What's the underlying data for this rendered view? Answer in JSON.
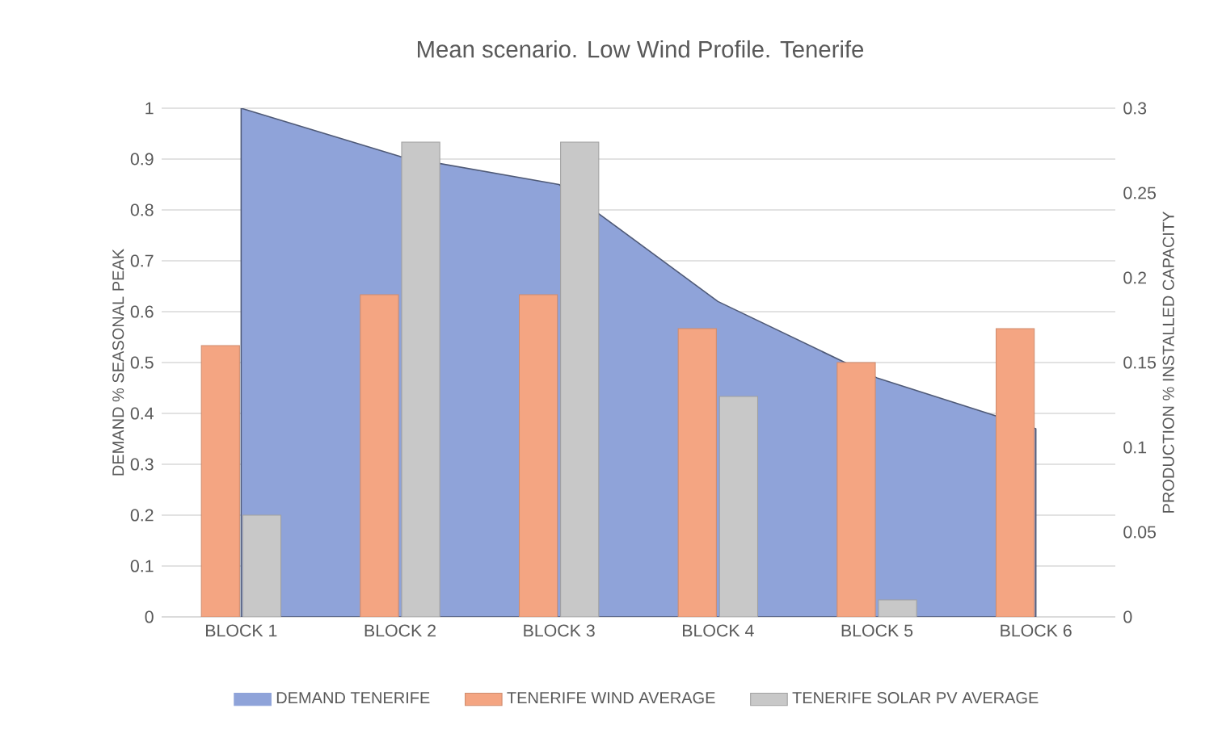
{
  "chart_data": {
    "type": "bar",
    "title": "Mean scenario. Low Wind Profile. Tenerife",
    "categories": [
      "BLOCK 1",
      "BLOCK 2",
      "BLOCK 3",
      "BLOCK 4",
      "BLOCK 5",
      "BLOCK 6"
    ],
    "series": [
      {
        "name": "DEMAND TENERIFE",
        "type": "area",
        "axis": "y",
        "color": "#8fa3d9",
        "values": [
          1.0,
          0.905,
          0.85,
          0.62,
          0.47,
          0.37
        ]
      },
      {
        "name": "TENERIFE WIND AVERAGE",
        "axis": "y2",
        "color": "#f4a582",
        "values": [
          0.16,
          0.19,
          0.19,
          0.17,
          0.15,
          0.17
        ]
      },
      {
        "name": "TENERIFE SOLAR PV AVERAGE",
        "axis": "y2",
        "color": "#c8c8c8",
        "values": [
          0.06,
          0.28,
          0.28,
          0.13,
          0.01,
          null
        ]
      }
    ],
    "ylabel": "DEMAND % SEASONAL PEAK",
    "y2label": "PRODUCTION % INSTALLED CAPACITY",
    "ylim": [
      0,
      1
    ],
    "yticks": [
      0,
      0.1,
      0.2,
      0.3,
      0.4,
      0.5,
      0.6,
      0.7,
      0.8,
      0.9,
      1
    ],
    "y2lim": [
      0,
      0.3
    ],
    "y2ticks": [
      0,
      0.05,
      0.1,
      0.15,
      0.2,
      0.25,
      0.3
    ],
    "grid": "y",
    "legend": "bottom"
  }
}
